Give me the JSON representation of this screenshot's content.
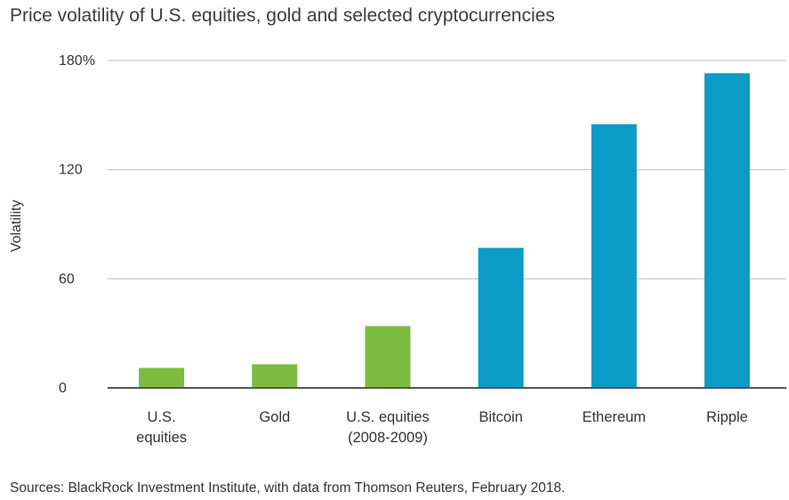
{
  "chart_data": {
    "type": "bar",
    "title": "Price volatility of U.S. equities, gold and selected cryptocurrencies",
    "ylabel": "Volatility",
    "xlabel": "",
    "ylim": [
      0,
      180
    ],
    "yticks": [
      {
        "value": 0,
        "label": "0"
      },
      {
        "value": 60,
        "label": "60"
      },
      {
        "value": 120,
        "label": "120"
      },
      {
        "value": 180,
        "label": "180%"
      }
    ],
    "grid": true,
    "categories": [
      [
        "U.S.",
        "equities"
      ],
      [
        "Gold"
      ],
      [
        "U.S. equities",
        "(2008-2009)"
      ],
      [
        "Bitcoin"
      ],
      [
        "Ethereum"
      ],
      [
        "Ripple"
      ]
    ],
    "values": [
      11,
      13,
      34,
      77,
      145,
      173
    ],
    "bar_colors": [
      "#7dbb42",
      "#7dbb42",
      "#7dbb42",
      "#0a9cc4",
      "#0a9cc4",
      "#0a9cc4"
    ]
  },
  "source": "Sources: BlackRock Investment Institute, with data from Thomson Reuters, February 2018."
}
